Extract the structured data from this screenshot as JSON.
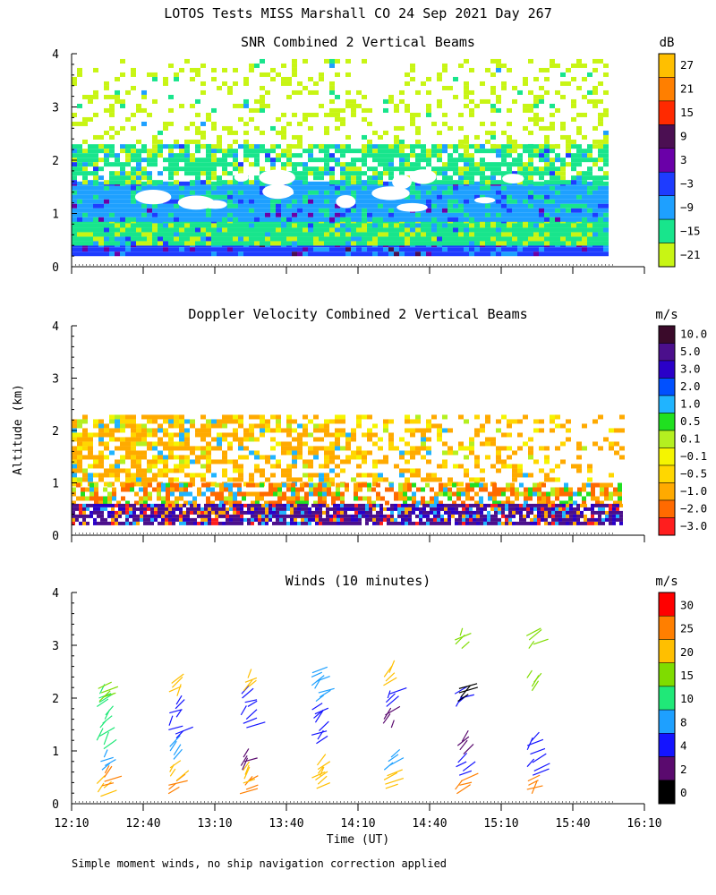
{
  "page_title": "LOTOS Tests MISS Marshall CO  24 Sep 2021 Day 267",
  "ylabel_shared": "Altitude (km)",
  "xlabel": "Time (UT)",
  "footnote": "Simple moment winds, no ship navigation correction applied",
  "time_ticks": [
    "12:10",
    "12:40",
    "13:10",
    "13:40",
    "14:10",
    "14:40",
    "15:10",
    "15:40",
    "16:10"
  ],
  "alt_ticks": [
    "0",
    "1",
    "2",
    "3",
    "4"
  ],
  "chart_data": [
    {
      "type": "heatmap",
      "title": "SNR Combined 2 Vertical Beams",
      "unit": "dB",
      "xlabel": "Time (UT)",
      "ylabel": "Altitude (km)",
      "xlim_hours": [
        12.1667,
        16.1667
      ],
      "ylim_km": [
        0,
        4
      ],
      "data_time_range": [
        "12:10",
        "15:54"
      ],
      "colorbar_labels": [
        "27",
        "21",
        "15",
        "9",
        "3",
        "−3",
        "−9",
        "−15",
        "−21"
      ],
      "colorbar_colors": [
        "#ffbf00",
        "#ff7f00",
        "#ff2a00",
        "#4b0f52",
        "#6a00a8",
        "#1e3cff",
        "#1ea0ff",
        "#18e58c",
        "#c8f514"
      ],
      "layers": [
        {
          "alt_low_km": 0.25,
          "alt_high_km": 0.45,
          "dominant_db": -3
        },
        {
          "alt_low_km": 0.45,
          "alt_high_km": 0.9,
          "dominant_db": -15
        },
        {
          "alt_low_km": 0.9,
          "alt_high_km": 1.6,
          "dominant_db": -9
        },
        {
          "alt_low_km": 1.6,
          "alt_high_km": 2.3,
          "dominant_db": -15
        },
        {
          "alt_low_km": 2.3,
          "alt_high_km": 3.9,
          "dominant_db": -21
        }
      ]
    },
    {
      "type": "heatmap",
      "title": "Doppler Velocity Combined 2 Vertical Beams",
      "unit": "m/s",
      "xlabel": "Time (UT)",
      "ylabel": "Altitude (km)",
      "xlim_hours": [
        12.1667,
        16.1667
      ],
      "ylim_km": [
        0,
        4
      ],
      "colorbar_labels": [
        "10.0",
        "5.0",
        "3.0",
        "2.0",
        "1.0",
        "0.5",
        "0.1",
        "−0.1",
        "−0.5",
        "−1.0",
        "−2.0",
        "−3.0"
      ],
      "colorbar_colors": [
        "#3a0a2a",
        "#4b0f8c",
        "#2a00c8",
        "#0050ff",
        "#20b4ff",
        "#20e020",
        "#b4f020",
        "#f5f500",
        "#ffd700",
        "#ffaa00",
        "#ff6a00",
        "#ff1e1e"
      ],
      "layers": [
        {
          "alt_low_km": 0.25,
          "alt_high_km": 0.6,
          "dominant_ms": 5.0
        },
        {
          "alt_low_km": 0.6,
          "alt_high_km": 1.0,
          "dominant_ms": -1.0
        },
        {
          "alt_low_km": 1.0,
          "alt_high_km": 2.3,
          "dominant_ms": -0.5
        }
      ]
    },
    {
      "type": "scatter",
      "title": "Winds (10 minutes)",
      "unit": "m/s",
      "xlabel": "Time (UT)",
      "ylabel": "Altitude (km)",
      "xlim_hours": [
        12.1667,
        16.1667
      ],
      "ylim_km": [
        0,
        4
      ],
      "colorbar_labels": [
        "30",
        "25",
        "20",
        "15",
        "10",
        "8",
        "4",
        "2",
        "0"
      ],
      "colorbar_colors": [
        "#ff0000",
        "#ff7f00",
        "#ffbf00",
        "#7fdc00",
        "#20e878",
        "#1ea0ff",
        "#1414ff",
        "#5a0a6e",
        "#000000"
      ],
      "profile_times": [
        "12:25",
        "12:55",
        "13:25",
        "13:55",
        "14:25",
        "14:55",
        "15:25"
      ],
      "profiles": [
        [
          {
            "alt": 0.3,
            "speed": 20
          },
          {
            "alt": 0.5,
            "speed": 25
          },
          {
            "alt": 0.8,
            "speed": 8
          },
          {
            "alt": 1.2,
            "speed": 10
          },
          {
            "alt": 1.6,
            "speed": 10
          },
          {
            "alt": 2.0,
            "speed": 10
          },
          {
            "alt": 2.1,
            "speed": 15
          }
        ],
        [
          {
            "alt": 0.35,
            "speed": 25
          },
          {
            "alt": 0.6,
            "speed": 20
          },
          {
            "alt": 1.0,
            "speed": 8
          },
          {
            "alt": 1.4,
            "speed": 4
          },
          {
            "alt": 1.8,
            "speed": 4
          },
          {
            "alt": 2.2,
            "speed": 20
          }
        ],
        [
          {
            "alt": 0.35,
            "speed": 25
          },
          {
            "alt": 0.55,
            "speed": 20
          },
          {
            "alt": 0.8,
            "speed": 2
          },
          {
            "alt": 1.6,
            "speed": 4
          },
          {
            "alt": 2.0,
            "speed": 4
          },
          {
            "alt": 2.3,
            "speed": 20
          }
        ],
        [
          {
            "alt": 0.45,
            "speed": 20
          },
          {
            "alt": 0.65,
            "speed": 20
          },
          {
            "alt": 1.3,
            "speed": 4
          },
          {
            "alt": 1.7,
            "speed": 4
          },
          {
            "alt": 2.1,
            "speed": 8
          },
          {
            "alt": 2.4,
            "speed": 8
          }
        ],
        [
          {
            "alt": 0.45,
            "speed": 20
          },
          {
            "alt": 0.8,
            "speed": 8
          },
          {
            "alt": 1.6,
            "speed": 2
          },
          {
            "alt": 2.0,
            "speed": 4
          },
          {
            "alt": 2.4,
            "speed": 20
          }
        ],
        [
          {
            "alt": 0.35,
            "speed": 25
          },
          {
            "alt": 0.7,
            "speed": 4
          },
          {
            "alt": 1.1,
            "speed": 2
          },
          {
            "alt": 2.0,
            "speed": 4
          },
          {
            "alt": 2.1,
            "speed": 0
          },
          {
            "alt": 3.1,
            "speed": 15
          }
        ],
        [
          {
            "alt": 0.35,
            "speed": 25
          },
          {
            "alt": 0.7,
            "speed": 4
          },
          {
            "alt": 1.1,
            "speed": 4
          },
          {
            "alt": 2.3,
            "speed": 15
          },
          {
            "alt": 3.1,
            "speed": 15
          }
        ]
      ]
    }
  ]
}
